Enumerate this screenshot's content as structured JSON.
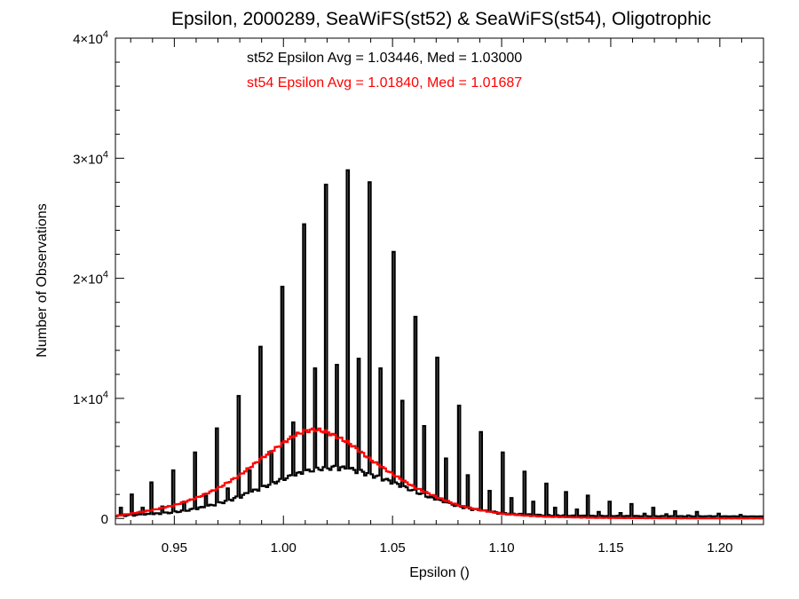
{
  "chart_data": {
    "type": "histogram",
    "title": "Epsilon, 2000289, SeaWiFS(st52) & SeaWiFS(st54), Oligotrophic",
    "xlabel": "Epsilon ()",
    "ylabel": "Number of Observations",
    "xlim": [
      0.923,
      1.22
    ],
    "ylim": [
      -500,
      40000
    ],
    "x_ticks": [
      0.95,
      1.0,
      1.05,
      1.1,
      1.15,
      1.2
    ],
    "x_tick_labels": [
      "0.95",
      "1.00",
      "1.05",
      "1.10",
      "1.15",
      "1.20"
    ],
    "y_tick_labels": [
      {
        "value": 0,
        "mantissa": "0",
        "exponent": ""
      },
      {
        "value": 10000,
        "mantissa": "1×10",
        "exponent": "4"
      },
      {
        "value": 20000,
        "mantissa": "2×10",
        "exponent": "4"
      },
      {
        "value": 30000,
        "mantissa": "3×10",
        "exponent": "4"
      },
      {
        "value": 40000,
        "mantissa": "4×10",
        "exponent": "4"
      }
    ],
    "annotations": [
      {
        "text": "st52 Epsilon Avg = 1.03446, Med = 1.03000",
        "color": "#000000"
      },
      {
        "text": "st54 Epsilon Avg = 1.01840, Med = 1.01687",
        "color": "#ff0000"
      }
    ],
    "series": [
      {
        "name": "st52",
        "color": "#000000",
        "bin_width": 0.001,
        "spikes_x": [
          0.92,
          0.93,
          0.94,
          0.95,
          0.96,
          0.97,
          0.98,
          0.99,
          1.0,
          1.01,
          1.02,
          1.03,
          1.04,
          1.05,
          1.06,
          1.07,
          1.08,
          1.09,
          1.1,
          1.11,
          1.12,
          1.13,
          1.14,
          1.15,
          1.16,
          1.17,
          1.18,
          1.19,
          1.2,
          1.21
        ],
        "spikes_y": [
          1800,
          2000,
          3000,
          4000,
          5500,
          7500,
          10200,
          14300,
          19300,
          24500,
          27800,
          29000,
          28000,
          22200,
          16800,
          13400,
          9400,
          7200,
          5500,
          3900,
          2900,
          2200,
          1900,
          1400,
          1200,
          900,
          600,
          550,
          400,
          300
        ],
        "halves_x": [
          0.925,
          0.935,
          0.945,
          0.955,
          0.965,
          0.975,
          0.985,
          0.995,
          1.005,
          1.015,
          1.025,
          1.035,
          1.045,
          1.055,
          1.065,
          1.075,
          1.085,
          1.095,
          1.105,
          1.115,
          1.125,
          1.135,
          1.145,
          1.155,
          1.165,
          1.175,
          1.185,
          1.195,
          1.205,
          1.215
        ],
        "halves_y": [
          900,
          900,
          1000,
          1400,
          1900,
          2500,
          4000,
          5600,
          8000,
          12500,
          12800,
          13300,
          12500,
          9800,
          7700,
          5000,
          3600,
          2300,
          1700,
          1400,
          900,
          750,
          550,
          450,
          400,
          350,
          250,
          200,
          150,
          120
        ],
        "background_peak": 3800,
        "background_center": 1.023,
        "background_sigma": 0.032
      },
      {
        "name": "st54",
        "color": "#ff0000",
        "x": [
          0.923,
          0.93,
          0.94,
          0.95,
          0.96,
          0.97,
          0.98,
          0.99,
          1.0,
          1.005,
          1.01,
          1.015,
          1.02,
          1.03,
          1.04,
          1.05,
          1.06,
          1.07,
          1.08,
          1.09,
          1.1,
          1.11,
          1.12,
          1.14,
          1.16,
          1.18,
          1.2,
          1.22
        ],
        "y": [
          200,
          400,
          700,
          1100,
          1700,
          2500,
          3600,
          5000,
          6300,
          6900,
          7300,
          7400,
          7200,
          6300,
          4900,
          3700,
          2600,
          1800,
          1100,
          700,
          400,
          250,
          150,
          60,
          30,
          15,
          5,
          0
        ]
      }
    ]
  }
}
